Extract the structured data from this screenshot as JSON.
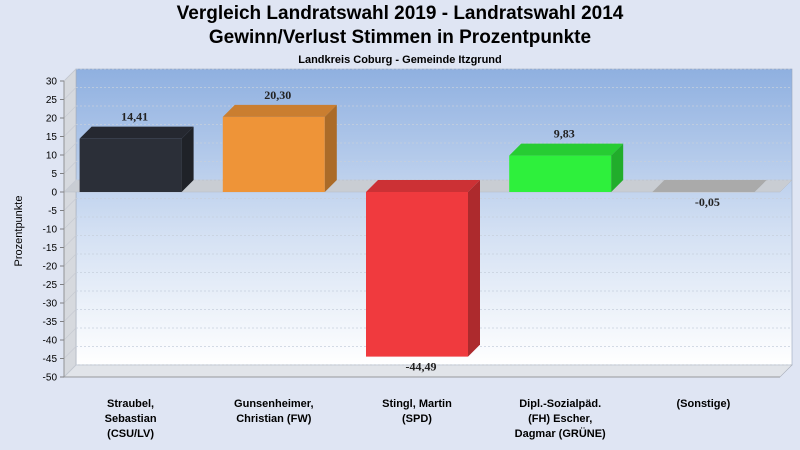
{
  "header": {
    "title_line1": "Vergleich Landratswahl 2019 - Landratswahl 2014",
    "title_line2": "Gewinn/Verlust Stimmen in Prozentpunkte",
    "subtitle": "Landkreis Coburg - Gemeinde Itzgrund"
  },
  "chart_data": {
    "type": "bar",
    "title": "Vergleich Landratswahl 2019 - Landratswahl 2014 / Gewinn/Verlust Stimmen in Prozentpunkte",
    "subtitle": "Landkreis Coburg - Gemeinde Itzgrund",
    "ylabel": "Prozentpunkte",
    "xlabel": "",
    "ylim": [
      -50,
      30
    ],
    "yticks": [
      30,
      25,
      20,
      15,
      10,
      5,
      0,
      -5,
      -10,
      -15,
      -20,
      -25,
      -30,
      -35,
      -40,
      -45,
      -50
    ],
    "grid": true,
    "categories": [
      "Straubel,\nSebastian\n(CSU/LV)",
      "Gunsenheimer,\nChristian (FW)",
      "Stingl, Martin\n(SPD)",
      "Dipl.-Sozialpäd.\n(FH) Escher,\nDagmar (GRÜNE)",
      "(Sonstige)"
    ],
    "values": [
      14.41,
      20.3,
      -44.49,
      9.83,
      -0.05
    ],
    "value_labels": [
      "14,41",
      "20,30",
      "-44,49",
      "9,83",
      "-0,05"
    ],
    "colors": [
      "#2b2f38",
      "#ee9438",
      "#f03a3e",
      "#2ef03c",
      "#c8c8c8"
    ]
  }
}
